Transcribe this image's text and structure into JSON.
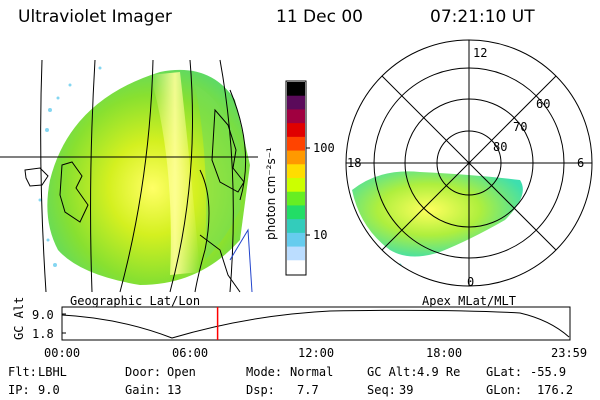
{
  "header": {
    "instrument": "Ultraviolet Imager",
    "date": "11 Dec 00",
    "time": "07:21:10 UT"
  },
  "left_panel": {
    "caption": "Geographic Lat/Lon"
  },
  "right_panel": {
    "caption": "Apex MLat/MLT",
    "mlt_labels": {
      "top": "12",
      "left": "18",
      "right": "6",
      "bottom": "0"
    },
    "lat_labels": [
      "80",
      "70",
      "60"
    ]
  },
  "colorbar": {
    "unit_label": "photon cm⁻²s⁻¹",
    "tick_labels": [
      "100",
      "10"
    ],
    "colors": [
      "#000000",
      "#5a0a5a",
      "#a00040",
      "#e00000",
      "#ff4400",
      "#ff9900",
      "#ffdd00",
      "#ccff00",
      "#66ee22",
      "#22dd66",
      "#33ccbb",
      "#66ccee",
      "#bbddff",
      "#ffffff"
    ]
  },
  "timeline": {
    "axis_label": "GC Alt",
    "y_ticks": [
      "9.0",
      "1.8"
    ],
    "x_ticks": [
      "00:00",
      "06:00",
      "12:00",
      "18:00",
      "23:59"
    ],
    "current_time_hours": 7.35,
    "marker_color": "#ff0000"
  },
  "info": {
    "filter": {
      "label": "Flt:",
      "value": "LBHL"
    },
    "ip": {
      "label": "IP:",
      "value": "9.0"
    },
    "door": {
      "label": "Door:",
      "value": "Open"
    },
    "gain": {
      "label": "Gain:",
      "value": "13"
    },
    "mode": {
      "label": "Mode:",
      "value": "Normal"
    },
    "dsp": {
      "label": "Dsp:",
      "value": "7.7"
    },
    "gcalt": {
      "label": "GC Alt:",
      "value": "4.9 Re"
    },
    "seq": {
      "label": "Seq:",
      "value": "39"
    },
    "glat": {
      "label": "GLat:",
      "value": "-55.9"
    },
    "glon": {
      "label": "GLon:",
      "value": "176.2"
    }
  }
}
